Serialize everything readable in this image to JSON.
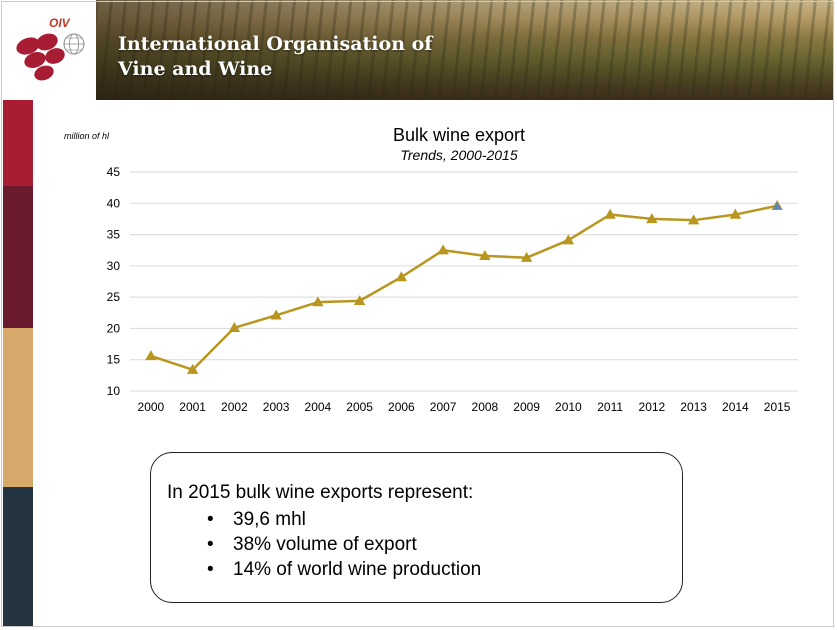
{
  "header": {
    "logo_text": "OIV",
    "title_line1": "International Organisation of",
    "title_line2": "Vine and Wine"
  },
  "colors": {
    "series": "#b8961f",
    "last_marker": "#5b89b8",
    "stripes": [
      "#a81c34",
      "#6b1a2e",
      "#d6a869",
      "#243441"
    ],
    "logo": "#a81c34"
  },
  "chart_data": {
    "type": "line",
    "title": "Bulk wine export",
    "subtitle": "Trends, 2000-2015",
    "ylabel": "million of hl",
    "xlabel": "",
    "ylim": [
      10,
      45
    ],
    "yticks": [
      10,
      15,
      20,
      25,
      30,
      35,
      40,
      45
    ],
    "grid": true,
    "x": [
      "2000",
      "2001",
      "2002",
      "2003",
      "2004",
      "2005",
      "2006",
      "2007",
      "2008",
      "2009",
      "2010",
      "2011",
      "2012",
      "2013",
      "2014",
      "2015"
    ],
    "series": [
      {
        "values": [
          15.6,
          13.4,
          20.1,
          22.1,
          24.2,
          24.4,
          28.2,
          32.5,
          31.6,
          31.3,
          34.1,
          38.2,
          37.5,
          37.3,
          38.2,
          39.6
        ]
      }
    ],
    "marker": "triangle"
  },
  "note": {
    "lead": "In 2015 bulk wine exports represent:",
    "bullet_char": "•",
    "items": [
      "39,6 mhl",
      "38% volume of export",
      "14% of world wine production"
    ]
  }
}
